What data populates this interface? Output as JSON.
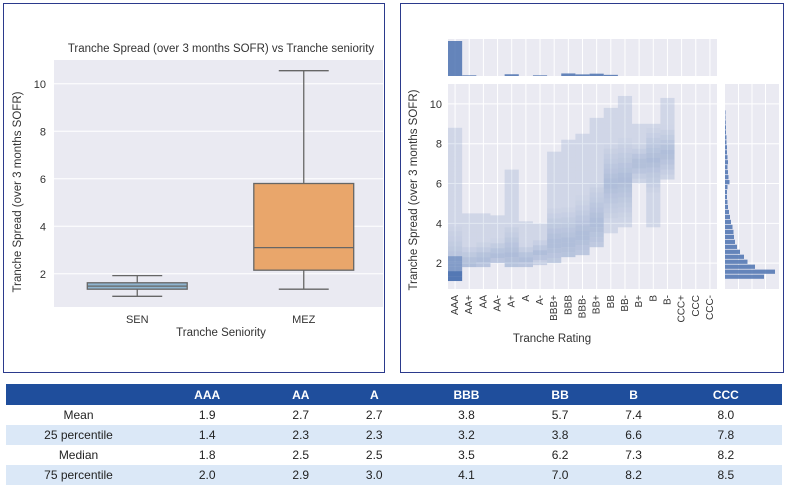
{
  "chart_data": [
    {
      "type": "box",
      "title": "Tranche Spread (over 3 months SOFR) vs Tranche seniority",
      "xlabel": "Tranche Seniority",
      "ylabel": "Tranche Spread (over 3 months SOFR)",
      "categories": [
        "SEN",
        "MEZ"
      ],
      "ylim": [
        0.6,
        11.0
      ],
      "yticks": [
        2,
        4,
        6,
        8,
        10
      ],
      "grid": true,
      "boxes": [
        {
          "category": "SEN",
          "whisker_low": 1.05,
          "q1": 1.35,
          "median": 1.48,
          "q3": 1.62,
          "whisker_high": 1.92,
          "color": "#8fb4cf"
        },
        {
          "category": "MEZ",
          "whisker_low": 1.35,
          "q1": 2.15,
          "median": 3.1,
          "q3": 5.8,
          "whisker_high": 10.55,
          "color": "#e9a66b"
        }
      ]
    },
    {
      "type": "heatmap",
      "xlabel": "Tranche Rating",
      "ylabel": "Tranche Spread (over 3 months SOFR)",
      "categories": [
        "AAA",
        "AA+",
        "AA",
        "AA-",
        "A+",
        "A",
        "A-",
        "BBB+",
        "BBB",
        "BBB-",
        "BB+",
        "BB",
        "BB-",
        "B+",
        "B",
        "B-",
        "CCC+",
        "CCC",
        "CCC-"
      ],
      "ylim": [
        0.7,
        11.0
      ],
      "yticks": [
        2,
        4,
        6,
        8,
        10
      ],
      "color": "#4c72b0",
      "columns": [
        {
          "rating": "AAA",
          "low": 1.1,
          "high": 8.8,
          "peak": 1.5
        },
        {
          "rating": "AA+",
          "low": 1.8,
          "high": 4.5,
          "peak": 2.0
        },
        {
          "rating": "AA",
          "low": 1.8,
          "high": 4.5,
          "peak": 2.2
        },
        {
          "rating": "AA-",
          "low": 2.0,
          "high": 4.4,
          "peak": 2.4
        },
        {
          "rating": "A+",
          "low": 1.8,
          "high": 6.7,
          "peak": 2.4
        },
        {
          "rating": "A",
          "low": 1.8,
          "high": 4.1,
          "peak": 2.2
        },
        {
          "rating": "A-",
          "low": 1.9,
          "high": 4.0,
          "peak": 2.5
        },
        {
          "rating": "BBB+",
          "low": 2.0,
          "high": 7.6,
          "peak": 3.0
        },
        {
          "rating": "BBB",
          "low": 2.3,
          "high": 8.2,
          "peak": 3.0
        },
        {
          "rating": "BBB-",
          "low": 2.4,
          "high": 8.5,
          "peak": 3.4
        },
        {
          "rating": "BB+",
          "low": 2.8,
          "high": 9.3,
          "peak": 4.0
        },
        {
          "rating": "BB",
          "low": 3.5,
          "high": 9.8,
          "peak": 6.0
        },
        {
          "rating": "BB-",
          "low": 3.8,
          "high": 10.4,
          "peak": 6.2
        },
        {
          "rating": "B+",
          "low": 6.0,
          "high": 9.0,
          "peak": 7.0
        },
        {
          "rating": "B",
          "low": 3.8,
          "high": 9.0,
          "peak": 7.2
        },
        {
          "rating": "B-",
          "low": 6.2,
          "high": 10.3,
          "peak": 7.5
        }
      ],
      "marginal_x": [
        3.0,
        0.06,
        0,
        0,
        0.15,
        0,
        0.06,
        0,
        0.22,
        0.14,
        0.2,
        0.1,
        0,
        0,
        0,
        0,
        0,
        0,
        0
      ],
      "marginal_y": [
        {
          "y": 1.3,
          "w": 0.78
        },
        {
          "y": 1.55,
          "w": 1.0
        },
        {
          "y": 1.8,
          "w": 0.6
        },
        {
          "y": 2.05,
          "w": 0.45
        },
        {
          "y": 2.3,
          "w": 0.38
        },
        {
          "y": 2.55,
          "w": 0.3
        },
        {
          "y": 2.8,
          "w": 0.24
        },
        {
          "y": 3.05,
          "w": 0.2
        },
        {
          "y": 3.3,
          "w": 0.18
        },
        {
          "y": 3.55,
          "w": 0.17
        },
        {
          "y": 3.8,
          "w": 0.15
        },
        {
          "y": 4.05,
          "w": 0.12
        },
        {
          "y": 4.3,
          "w": 0.1
        },
        {
          "y": 4.55,
          "w": 0.08
        },
        {
          "y": 4.8,
          "w": 0.06
        },
        {
          "y": 5.05,
          "w": 0.05
        },
        {
          "y": 5.3,
          "w": 0.04
        },
        {
          "y": 5.55,
          "w": 0.04
        },
        {
          "y": 5.8,
          "w": 0.05
        },
        {
          "y": 6.05,
          "w": 0.09
        },
        {
          "y": 6.3,
          "w": 0.07
        },
        {
          "y": 6.55,
          "w": 0.06
        },
        {
          "y": 6.8,
          "w": 0.05
        },
        {
          "y": 7.05,
          "w": 0.06
        },
        {
          "y": 7.3,
          "w": 0.05
        },
        {
          "y": 7.55,
          "w": 0.04
        },
        {
          "y": 7.8,
          "w": 0.04
        },
        {
          "y": 8.05,
          "w": 0.03
        },
        {
          "y": 8.3,
          "w": 0.03
        },
        {
          "y": 8.55,
          "w": 0.02
        },
        {
          "y": 8.8,
          "w": 0.02
        },
        {
          "y": 9.05,
          "w": 0.015
        },
        {
          "y": 9.3,
          "w": 0.01
        },
        {
          "y": 9.55,
          "w": 0.01
        }
      ]
    }
  ],
  "table": {
    "headers": [
      "",
      "AAA",
      "AA",
      "A",
      "BBB",
      "BB",
      "B",
      "CCC"
    ],
    "rows": [
      {
        "label": "Mean",
        "values": [
          "1.9",
          "2.7",
          "2.7",
          "3.8",
          "5.7",
          "7.4",
          "8.0"
        ]
      },
      {
        "label": "25 percentile",
        "values": [
          "1.4",
          "2.3",
          "2.3",
          "3.2",
          "3.8",
          "6.6",
          "7.8"
        ]
      },
      {
        "label": "Median",
        "values": [
          "1.8",
          "2.5",
          "2.5",
          "3.5",
          "6.2",
          "7.3",
          "8.2"
        ]
      },
      {
        "label": "75 percentile",
        "values": [
          "2.0",
          "2.9",
          "3.0",
          "4.1",
          "7.0",
          "8.2",
          "8.5"
        ]
      }
    ]
  }
}
